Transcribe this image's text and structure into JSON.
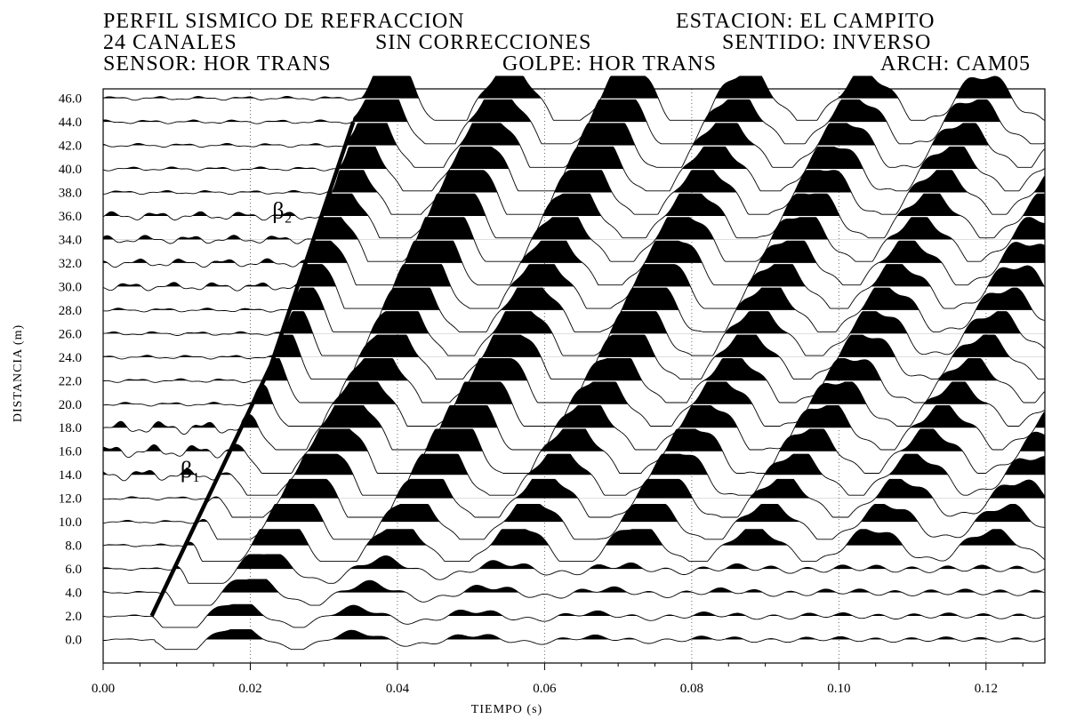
{
  "header": {
    "line1_left": "PERFIL SISMICO DE REFRACCION",
    "line1_right": "ESTACION: EL CAMPITO",
    "line2_left": "24 CANALES",
    "line2_mid": "SIN CORRECCIONES",
    "line2_right": "SENTIDO: INVERSO",
    "line3_left": "SENSOR: HOR TRANS",
    "line3_mid": "GOLPE: HOR TRANS",
    "line3_right": "ARCH: CAM05"
  },
  "chart_data": {
    "type": "seismic-wiggle",
    "xlabel": "TIEMPO (s)",
    "ylabel": "DISTANCIA (m)",
    "xlim": [
      0.0,
      0.128
    ],
    "ylim": [
      -2.0,
      46.8
    ],
    "x_ticks": [
      0.0,
      0.02,
      0.04,
      0.06,
      0.08,
      0.1,
      0.12
    ],
    "x_tick_labels": [
      "0.00",
      "0.02",
      "0.04",
      "0.06",
      "0.08",
      "0.10",
      "0.12"
    ],
    "traces": [
      "46.0",
      "44.0",
      "42.0",
      "40.0",
      "38.0",
      "36.0",
      "34.0",
      "32.0",
      "30.0",
      "28.0",
      "26.0",
      "24.0",
      "22.0",
      "20.0",
      "18.0",
      "16.0",
      "14.0",
      "12.0",
      "10.0",
      "8.0",
      "6.0",
      "4.0",
      "2.0",
      "0.0"
    ],
    "gridlines_x": [
      0.02,
      0.04,
      0.06,
      0.08,
      0.1,
      0.12
    ],
    "first_arrival_picks": [
      {
        "x": 0.0066,
        "y": 2.0
      },
      {
        "x": 0.0228,
        "y": 23.3
      },
      {
        "x": 0.034,
        "y": 44.0
      }
    ],
    "annotations": [
      {
        "text": "β₁",
        "x": 0.0105,
        "y": 13.8
      },
      {
        "text": "β₂",
        "x": 0.023,
        "y": 35.8
      }
    ],
    "colors": {
      "fill": "#000000",
      "line": "#000000",
      "grid": "#666666"
    }
  }
}
